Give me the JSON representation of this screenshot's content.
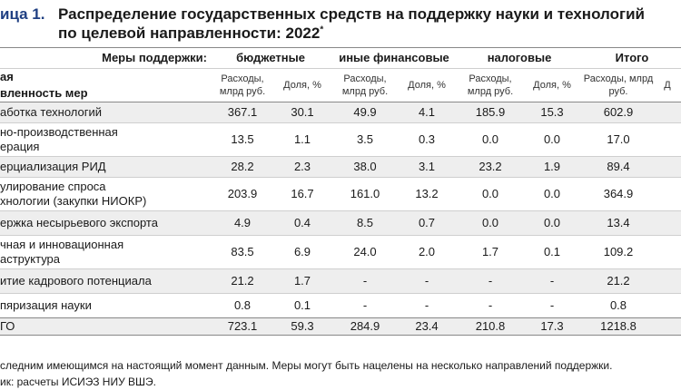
{
  "title": {
    "label": "ица 1.",
    "line1": "Распределение государственных средств на поддержку науки и технологий",
    "line2": "по целевой направленности: 2022",
    "line2_sup": "*"
  },
  "header": {
    "measures_label": "Меры поддержки:",
    "groups": [
      "бюджетные",
      "иные финансовые",
      "налоговые",
      "Итого"
    ],
    "col_expense": "Расходы, млрд руб.",
    "col_share": "Доля, %",
    "stub_line1": "ая",
    "stub_line2": "вленность мер",
    "cut_share": "Д"
  },
  "rows": [
    {
      "name": "аботка технологий",
      "v": [
        "367.1",
        "30.1",
        "49.9",
        "4.1",
        "185.9",
        "15.3",
        "602.9"
      ]
    },
    {
      "name": "но-производственная\nерация",
      "v": [
        "13.5",
        "1.1",
        "3.5",
        "0.3",
        "0.0",
        "0.0",
        "17.0"
      ]
    },
    {
      "name": "ерциализация РИД",
      "v": [
        "28.2",
        "2.3",
        "38.0",
        "3.1",
        "23.2",
        "1.9",
        "89.4"
      ]
    },
    {
      "name": "улирование спроса\nхнологии (закупки НИОКР)",
      "v": [
        "203.9",
        "16.7",
        "161.0",
        "13.2",
        "0.0",
        "0.0",
        "364.9"
      ]
    },
    {
      "name": "ержка несырьевого экспорта",
      "v": [
        "4.9",
        "0.4",
        "8.5",
        "0.7",
        "0.0",
        "0.0",
        "13.4"
      ]
    },
    {
      "name": "чная и инновационная\nаструктура",
      "v": [
        "83.5",
        "6.9",
        "24.0",
        "2.0",
        "1.7",
        "0.1",
        "109.2"
      ]
    },
    {
      "name": "итие кадрового потенциала",
      "v": [
        "21.2",
        "1.7",
        "-",
        "-",
        "-",
        "-",
        "21.2"
      ]
    },
    {
      "name": "пяризация науки",
      "v": [
        "0.8",
        "0.1",
        "-",
        "-",
        "-",
        "-",
        "0.8"
      ]
    },
    {
      "name": "ГО",
      "v": [
        "723.1",
        "59.3",
        "284.9",
        "23.4",
        "210.8",
        "17.3",
        "1218.8"
      ]
    }
  ],
  "notes": {
    "line1": "следним имеющимся на настоящий момент данным. Меры могут быть нацелены на несколько направлений поддержки.",
    "line2": "ик: расчеты ИСИЭЗ НИУ ВШЭ."
  }
}
